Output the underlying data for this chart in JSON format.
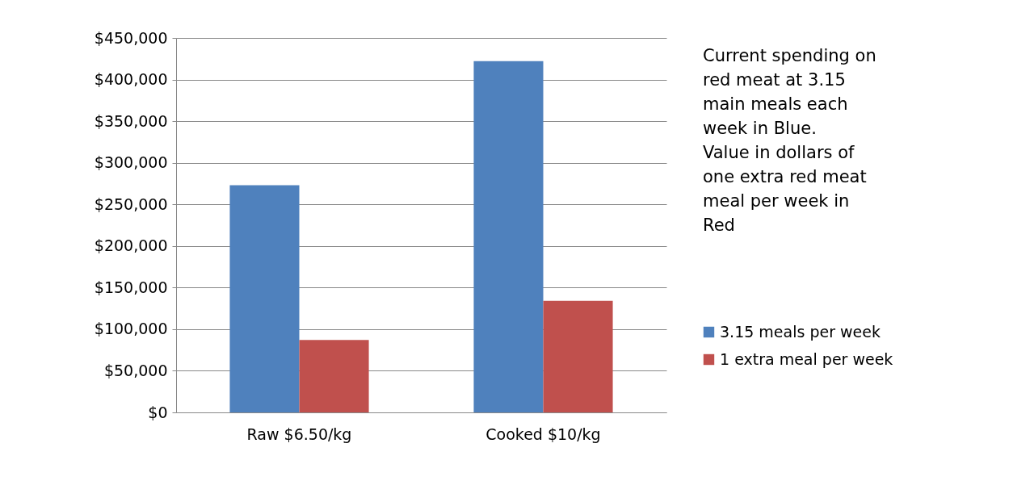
{
  "chart_data": {
    "type": "bar",
    "categories": [
      "Raw $6.50/kg",
      "Cooked $10/kg"
    ],
    "series": [
      {
        "name": "3.15 meals per week",
        "color": "#4f81bd",
        "values": [
          273000,
          422000
        ]
      },
      {
        "name": "1 extra meal per week",
        "color": "#c0504d",
        "values": [
          87000,
          134000
        ]
      }
    ],
    "ylim": [
      0,
      450000
    ],
    "yticks": [
      {
        "value": 0,
        "label": "$0"
      },
      {
        "value": 50000,
        "label": "$50,000"
      },
      {
        "value": 100000,
        "label": "$100,000"
      },
      {
        "value": 150000,
        "label": "$150,000"
      },
      {
        "value": 200000,
        "label": "$200,000"
      },
      {
        "value": 250000,
        "label": "$250,000"
      },
      {
        "value": 300000,
        "label": "$300,000"
      },
      {
        "value": 350000,
        "label": "$350,000"
      },
      {
        "value": 400000,
        "label": "$400,000"
      },
      {
        "value": 450000,
        "label": "$450,000"
      }
    ],
    "grid": "y",
    "legend": "right",
    "annotations": [
      "Current spending on red meat at 3.15 main meals each week in Blue.",
      "Value in dollars of one extra red meat meal per week in Red"
    ]
  }
}
